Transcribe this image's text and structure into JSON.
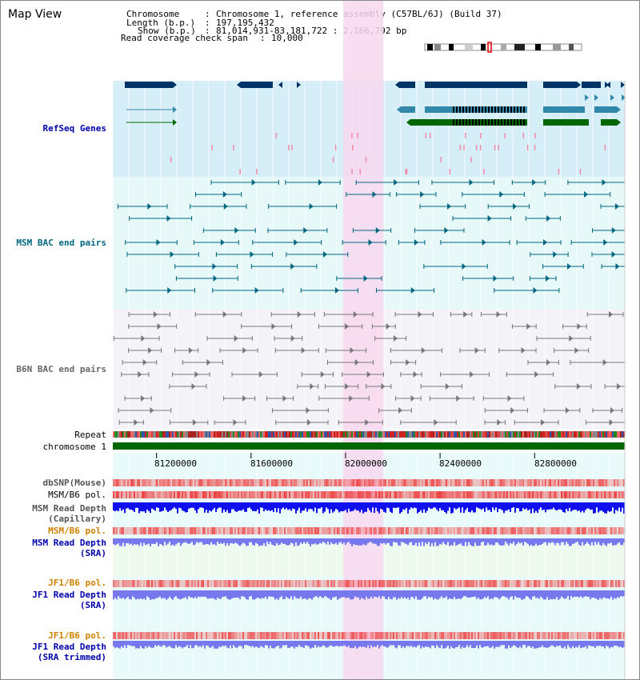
{
  "title": "Map View",
  "info": {
    "chromosome_label": "Chromosome",
    "chromosome_value": "Chromosome 1, reference assembly (C57BL/6J) (Build 37)",
    "length_label": "Length (b.p.)",
    "length_value": "197,195,432",
    "show_label": "Show (b.p.)",
    "show_value": "81,014,931-83,181,722 : 2,166,792 bp",
    "coverage_label": "Read coverage check span",
    "coverage_value": "10,000"
  },
  "tracks": {
    "refseq": "RefSeq Genes",
    "msm_bac": "MSM BAC end pairs",
    "b6n_bac": "B6N BAC end pairs",
    "repeat": "Repeat",
    "chromosome": "chromosome 1",
    "dbsnp": "dbSNP(Mouse)",
    "msm_pol": "MSM/B6 pol.",
    "msm_depth_cap_1": "MSM Read Depth",
    "msm_depth_cap_2": "(Capillary)",
    "msm_pol_sra": "MSM/B6 pol.",
    "msm_depth_sra_1": "MSM Read Depth",
    "msm_depth_sra_2": "(SRA)",
    "jf1_pol": "JF1/B6 pol.",
    "jf1_depth_1": "JF1 Read Depth",
    "jf1_depth_2": "(SRA)",
    "jf1_pol_trim": "JF1/B6 pol.",
    "jf1_depth_trim_1": "JF1 Read Depth",
    "jf1_depth_trim_2": "(SRA trimmed)"
  },
  "axis": {
    "ticks": [
      "81200000",
      "81600000",
      "82000000",
      "82400000",
      "82800000"
    ],
    "tick_positions_bp": [
      81200000,
      81600000,
      82000000,
      82400000,
      82800000
    ],
    "start_bp": 81014931,
    "end_bp": 83181722
  },
  "highlight": {
    "start_bp": 81990000,
    "end_bp": 82160000
  },
  "colors": {
    "refseq_bg": "#d6eef8",
    "msm_bg": "#e6f8f8",
    "b6n_bg": "#f4f4f8",
    "gene_dark": "#003366",
    "gene_mid": "#3388aa",
    "gene_green": "#006600",
    "teal": "#006680",
    "gray": "#777777",
    "highlight": "#f8d8f0",
    "chrom_green": "#006600",
    "depth_blue": "#1010ee",
    "depth_light": "#7777ee",
    "snp_red": "#ee4444"
  }
}
